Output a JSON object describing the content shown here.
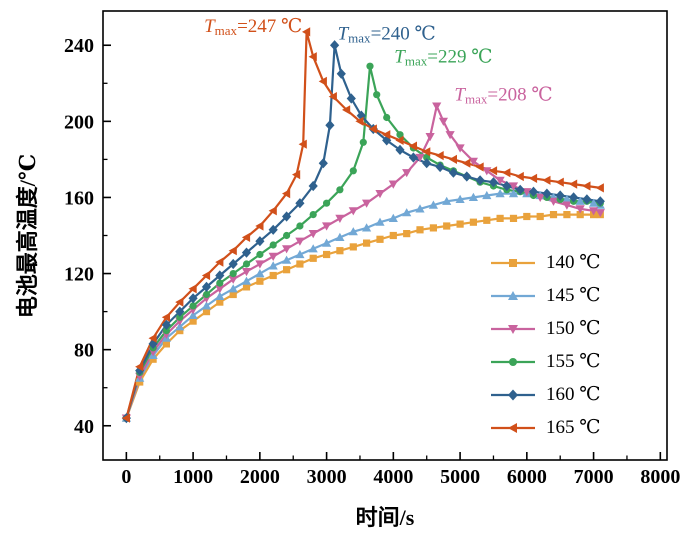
{
  "chart_data": {
    "type": "line",
    "title": "",
    "xlabel": "时间/s",
    "ylabel": "电池最高温度/℃",
    "xlim": [
      -350,
      8100
    ],
    "ylim": [
      22,
      258
    ],
    "x_ticks": [
      0,
      1000,
      2000,
      3000,
      4000,
      5000,
      6000,
      7000,
      8000
    ],
    "y_ticks": [
      40,
      80,
      120,
      160,
      200,
      240
    ],
    "x_minor_step": 500,
    "y_minor_step": 20,
    "grid": false,
    "legend_position": "lower right",
    "frame_color": "#000000",
    "series": [
      {
        "name": "140 ℃",
        "color": "#E9A23C",
        "marker": "square",
        "points": [
          [
            0,
            44
          ],
          [
            200,
            63
          ],
          [
            400,
            75
          ],
          [
            600,
            83
          ],
          [
            800,
            90
          ],
          [
            1000,
            95
          ],
          [
            1200,
            100
          ],
          [
            1400,
            105
          ],
          [
            1600,
            109
          ],
          [
            1800,
            113
          ],
          [
            2000,
            116
          ],
          [
            2200,
            119
          ],
          [
            2400,
            122
          ],
          [
            2600,
            125
          ],
          [
            2800,
            128
          ],
          [
            3000,
            130
          ],
          [
            3200,
            132
          ],
          [
            3400,
            134
          ],
          [
            3600,
            136
          ],
          [
            3800,
            138
          ],
          [
            4000,
            140
          ],
          [
            4200,
            141
          ],
          [
            4400,
            143
          ],
          [
            4600,
            144
          ],
          [
            4800,
            145
          ],
          [
            5000,
            146
          ],
          [
            5200,
            147
          ],
          [
            5400,
            148
          ],
          [
            5600,
            149
          ],
          [
            5800,
            149
          ],
          [
            6000,
            150
          ],
          [
            6200,
            150
          ],
          [
            6400,
            151
          ],
          [
            6600,
            151
          ],
          [
            6800,
            151
          ],
          [
            7000,
            151
          ],
          [
            7100,
            151
          ]
        ]
      },
      {
        "name": "145 ℃",
        "color": "#72A8D5",
        "marker": "triangle-up",
        "points": [
          [
            0,
            44
          ],
          [
            200,
            65
          ],
          [
            400,
            77
          ],
          [
            600,
            86
          ],
          [
            800,
            92
          ],
          [
            1000,
            98
          ],
          [
            1200,
            103
          ],
          [
            1400,
            108
          ],
          [
            1600,
            112
          ],
          [
            1800,
            116
          ],
          [
            2000,
            120
          ],
          [
            2200,
            124
          ],
          [
            2400,
            127
          ],
          [
            2600,
            130
          ],
          [
            2800,
            133
          ],
          [
            3000,
            136
          ],
          [
            3200,
            139
          ],
          [
            3400,
            142
          ],
          [
            3600,
            144
          ],
          [
            3800,
            147
          ],
          [
            4000,
            149
          ],
          [
            4200,
            152
          ],
          [
            4400,
            154
          ],
          [
            4600,
            156
          ],
          [
            4800,
            158
          ],
          [
            5000,
            159
          ],
          [
            5200,
            160
          ],
          [
            5400,
            161
          ],
          [
            5600,
            162
          ],
          [
            5800,
            162
          ],
          [
            6000,
            162
          ],
          [
            6200,
            161
          ],
          [
            6400,
            160
          ],
          [
            6600,
            159
          ],
          [
            6800,
            158
          ],
          [
            7000,
            157
          ],
          [
            7100,
            156
          ]
        ]
      },
      {
        "name": "150 ℃",
        "color": "#C9639E",
        "marker": "triangle-down",
        "points": [
          [
            0,
            44
          ],
          [
            200,
            66
          ],
          [
            400,
            79
          ],
          [
            600,
            88
          ],
          [
            800,
            95
          ],
          [
            1000,
            101
          ],
          [
            1200,
            107
          ],
          [
            1400,
            112
          ],
          [
            1600,
            117
          ],
          [
            1800,
            121
          ],
          [
            2000,
            125
          ],
          [
            2200,
            129
          ],
          [
            2400,
            133
          ],
          [
            2600,
            137
          ],
          [
            2800,
            141
          ],
          [
            3000,
            145
          ],
          [
            3200,
            149
          ],
          [
            3400,
            153
          ],
          [
            3600,
            157
          ],
          [
            3800,
            162
          ],
          [
            4000,
            167
          ],
          [
            4200,
            173
          ],
          [
            4400,
            181
          ],
          [
            4550,
            192
          ],
          [
            4650,
            208
          ],
          [
            4750,
            200
          ],
          [
            4850,
            193
          ],
          [
            5000,
            186
          ],
          [
            5200,
            179
          ],
          [
            5400,
            174
          ],
          [
            5600,
            169
          ],
          [
            5800,
            166
          ],
          [
            6000,
            163
          ],
          [
            6200,
            160
          ],
          [
            6400,
            158
          ],
          [
            6600,
            156
          ],
          [
            6800,
            154
          ],
          [
            7000,
            153
          ],
          [
            7100,
            152
          ]
        ]
      },
      {
        "name": "155 ℃",
        "color": "#3BA458",
        "marker": "circle",
        "points": [
          [
            0,
            44
          ],
          [
            200,
            68
          ],
          [
            400,
            81
          ],
          [
            600,
            90
          ],
          [
            800,
            97
          ],
          [
            1000,
            103
          ],
          [
            1200,
            109
          ],
          [
            1400,
            115
          ],
          [
            1600,
            120
          ],
          [
            1800,
            125
          ],
          [
            2000,
            130
          ],
          [
            2200,
            135
          ],
          [
            2400,
            140
          ],
          [
            2600,
            145
          ],
          [
            2800,
            151
          ],
          [
            3000,
            157
          ],
          [
            3200,
            164
          ],
          [
            3400,
            174
          ],
          [
            3550,
            189
          ],
          [
            3650,
            229
          ],
          [
            3750,
            214
          ],
          [
            3900,
            202
          ],
          [
            4100,
            193
          ],
          [
            4300,
            186
          ],
          [
            4500,
            181
          ],
          [
            4700,
            177
          ],
          [
            4900,
            174
          ],
          [
            5100,
            171
          ],
          [
            5300,
            168
          ],
          [
            5500,
            166
          ],
          [
            5700,
            164
          ],
          [
            5900,
            163
          ],
          [
            6100,
            161
          ],
          [
            6300,
            160
          ],
          [
            6500,
            159
          ],
          [
            6700,
            158
          ],
          [
            6900,
            158
          ],
          [
            7100,
            157
          ]
        ]
      },
      {
        "name": "160 ℃",
        "color": "#2F618E",
        "marker": "diamond",
        "points": [
          [
            0,
            44
          ],
          [
            200,
            69
          ],
          [
            400,
            83
          ],
          [
            600,
            93
          ],
          [
            800,
            100
          ],
          [
            1000,
            107
          ],
          [
            1200,
            113
          ],
          [
            1400,
            119
          ],
          [
            1600,
            125
          ],
          [
            1800,
            131
          ],
          [
            2000,
            137
          ],
          [
            2200,
            143
          ],
          [
            2400,
            150
          ],
          [
            2600,
            157
          ],
          [
            2800,
            166
          ],
          [
            2950,
            178
          ],
          [
            3050,
            198
          ],
          [
            3120,
            240
          ],
          [
            3220,
            225
          ],
          [
            3370,
            212
          ],
          [
            3520,
            203
          ],
          [
            3700,
            196
          ],
          [
            3900,
            190
          ],
          [
            4100,
            185
          ],
          [
            4300,
            181
          ],
          [
            4500,
            178
          ],
          [
            4700,
            176
          ],
          [
            4900,
            173
          ],
          [
            5100,
            171
          ],
          [
            5300,
            169
          ],
          [
            5500,
            168
          ],
          [
            5700,
            166
          ],
          [
            5900,
            164
          ],
          [
            6100,
            163
          ],
          [
            6300,
            162
          ],
          [
            6500,
            161
          ],
          [
            6700,
            160
          ],
          [
            6900,
            159
          ],
          [
            7100,
            158
          ]
        ]
      },
      {
        "name": "165 ℃",
        "color": "#D1501A",
        "marker": "triangle-left",
        "points": [
          [
            0,
            44
          ],
          [
            200,
            71
          ],
          [
            400,
            86
          ],
          [
            600,
            97
          ],
          [
            800,
            105
          ],
          [
            1000,
            112
          ],
          [
            1200,
            119
          ],
          [
            1400,
            126
          ],
          [
            1600,
            132
          ],
          [
            1800,
            139
          ],
          [
            2000,
            145
          ],
          [
            2200,
            153
          ],
          [
            2400,
            162
          ],
          [
            2550,
            172
          ],
          [
            2650,
            188
          ],
          [
            2700,
            247
          ],
          [
            2800,
            234
          ],
          [
            2950,
            221
          ],
          [
            3100,
            213
          ],
          [
            3300,
            206
          ],
          [
            3500,
            200
          ],
          [
            3700,
            196
          ],
          [
            3900,
            193
          ],
          [
            4100,
            190
          ],
          [
            4300,
            187
          ],
          [
            4500,
            184
          ],
          [
            4700,
            182
          ],
          [
            4900,
            180
          ],
          [
            5100,
            178
          ],
          [
            5300,
            176
          ],
          [
            5500,
            174
          ],
          [
            5700,
            173
          ],
          [
            5900,
            171
          ],
          [
            6100,
            170
          ],
          [
            6300,
            169
          ],
          [
            6500,
            168
          ],
          [
            6700,
            167
          ],
          [
            6900,
            166
          ],
          [
            7100,
            165
          ]
        ]
      }
    ],
    "annotations": [
      {
        "prefix": "T",
        "subscript": "max",
        "rest": "=247 ℃",
        "color": "#D1501A",
        "x": 1900,
        "y": 247
      },
      {
        "prefix": "T",
        "subscript": "max",
        "rest": "=240 ℃",
        "color": "#2F618E",
        "x": 3900,
        "y": 243
      },
      {
        "prefix": "T",
        "subscript": "max",
        "rest": "=229 ℃",
        "color": "#3BA458",
        "x": 4750,
        "y": 231
      },
      {
        "prefix": "T",
        "subscript": "max",
        "rest": "=208 ℃",
        "color": "#C9639E",
        "x": 5650,
        "y": 211
      }
    ]
  }
}
